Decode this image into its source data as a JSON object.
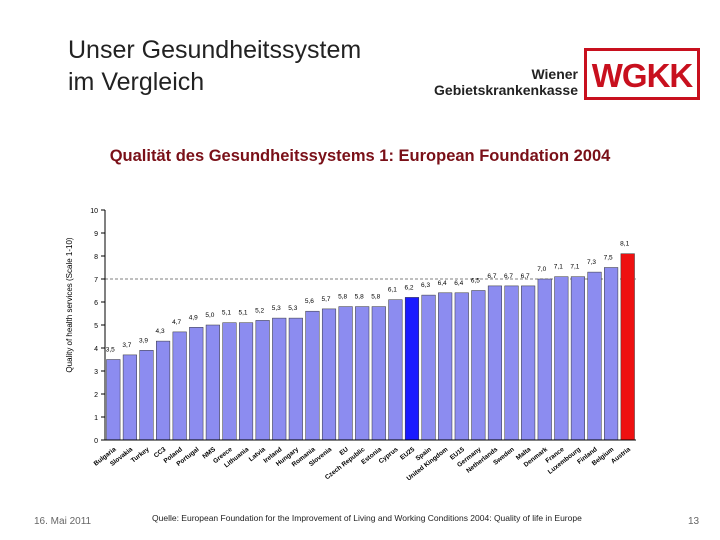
{
  "header": {
    "title_line1": "Unser Gesundheitssystem",
    "title_line2": "im Vergleich",
    "brand_line1": "Wiener",
    "brand_line2": "Gebietskrankenkasse",
    "logo_text": "WGKK",
    "logo_color": "#c8101e"
  },
  "chart_heading": "Qualität des Gesundheitssystems 1: European Foundation 2004",
  "chart_data": {
    "type": "bar",
    "ylabel": "Quality of health services (Scale 1-10)",
    "ylim": [
      0,
      10
    ],
    "yticks": [
      0,
      1,
      2,
      3,
      4,
      5,
      6,
      7,
      8,
      9,
      10
    ],
    "grid": false,
    "categories": [
      "Bulgaria",
      "Slovakia",
      "Turkey",
      "CC3",
      "Poland",
      "Portugal",
      "NMS",
      "Greece",
      "Lithuania",
      "Latvia",
      "Ireland",
      "Hungary",
      "Romania",
      "Slovenia",
      "EU",
      "Czech Republic",
      "Estonia",
      "Cyprus",
      "EU25",
      "Spain",
      "United Kingdom",
      "EU15",
      "Germany",
      "Netherlands",
      "Sweden",
      "Malta",
      "Denmark",
      "France",
      "Luxembourg",
      "Finland",
      "Belgium",
      "Austria"
    ],
    "values": [
      3.5,
      3.7,
      3.9,
      4.3,
      4.7,
      4.9,
      5.0,
      5.1,
      5.1,
      5.2,
      5.3,
      5.3,
      5.6,
      5.7,
      5.8,
      5.8,
      5.8,
      6.1,
      6.2,
      6.3,
      6.4,
      6.4,
      6.5,
      6.7,
      6.7,
      6.7,
      7.0,
      7.1,
      7.1,
      7.3,
      7.5,
      8.1
    ],
    "value_labels": [
      "3,5",
      "3,7",
      "3,9",
      "4,3",
      "4,7",
      "4,9",
      "5,0",
      "5,1",
      "5,1",
      "5,2",
      "5,3",
      "5,3",
      "5,6",
      "5,7",
      "5,8",
      "5,8",
      "5,8",
      "6,1",
      "6,2",
      "6,3",
      "6,4",
      "6,4",
      "6,5",
      "6,7",
      "6,7",
      "6,7",
      "7,0",
      "7,1",
      "7,1",
      "7,3",
      "7,5",
      "8,1"
    ],
    "reference_line": 7,
    "colors": {
      "default": "#8c8cf0",
      "highlight_eu25": "#1a1aff",
      "highlight_austria": "#ee1111",
      "axis": "#000000"
    },
    "highlight": {
      "EU25": "highlight_eu25",
      "Austria": "highlight_austria"
    }
  },
  "footer": {
    "date": "16. Mai 2011",
    "source": "Quelle: European Foundation for the Improvement of Living and Working Conditions 2004: Quality of life in Europe",
    "page": "13"
  }
}
